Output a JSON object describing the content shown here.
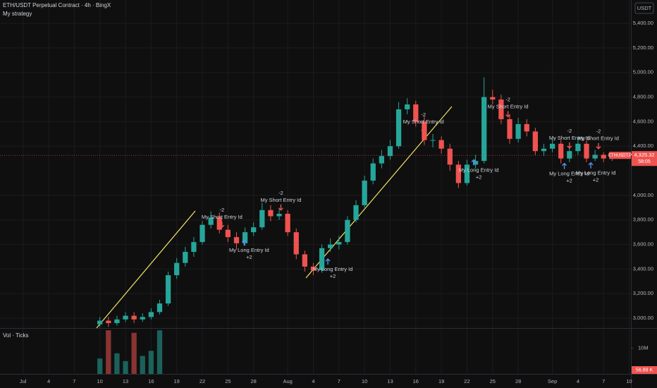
{
  "chart_data": {
    "type": "candlestick",
    "title": "ETH/USDT Perpetual Contract · 4h · BingX",
    "subtitle": "My strategy",
    "currency": "USDT",
    "volume_title": "Vol · Ticks",
    "symbol_tag": "ETHUSDT.P",
    "last_price": {
      "value": 4325.32,
      "label": "4,325.32"
    },
    "countdown": "58:05",
    "volume_tag": "56.89 K",
    "up_color": "#26a69a",
    "down_color": "#ef5350",
    "long_color": "#5b8def",
    "x": [
      9,
      10,
      11,
      12,
      13,
      14,
      15,
      16,
      17,
      18,
      19,
      20,
      21,
      22,
      23,
      24,
      25,
      26,
      27,
      28,
      29,
      30,
      31,
      32,
      33,
      34,
      35,
      36,
      37,
      38,
      39,
      40,
      41,
      42,
      43,
      44,
      45,
      46,
      47,
      48,
      49,
      50,
      51,
      52,
      53,
      54,
      55,
      56,
      57,
      58,
      59,
      60,
      61,
      62,
      63,
      64,
      65,
      66,
      67,
      68,
      69
    ],
    "open": [
      2950,
      2980,
      2960,
      2990,
      3020,
      2990,
      3010,
      3050,
      3120,
      3350,
      3450,
      3540,
      3620,
      3760,
      3820,
      3720,
      3660,
      3610,
      3700,
      3740,
      3880,
      3830,
      3850,
      3700,
      3520,
      3420,
      3390,
      3570,
      3600,
      3620,
      3800,
      3920,
      4120,
      4260,
      4320,
      4400,
      4700,
      4740,
      4600,
      4450,
      4450,
      4380,
      4250,
      4100,
      4250,
      4280,
      4800,
      4780,
      4620,
      4460,
      4580,
      4520,
      4360,
      4380,
      4420,
      4300,
      4360,
      4420,
      4300,
      4330,
      4300
    ],
    "high": [
      3010,
      3010,
      3020,
      3050,
      3050,
      3040,
      3080,
      3150,
      3380,
      3490,
      3580,
      3660,
      3790,
      3870,
      3860,
      3760,
      3700,
      3740,
      3780,
      3940,
      3920,
      3890,
      3880,
      3730,
      3550,
      3450,
      3600,
      3650,
      3670,
      3830,
      3960,
      4160,
      4300,
      4370,
      4450,
      4760,
      4790,
      4770,
      4640,
      4500,
      4480,
      4420,
      4280,
      4290,
      4330,
      4960,
      4860,
      4820,
      4660,
      4630,
      4620,
      4550,
      4420,
      4460,
      4450,
      4400,
      4470,
      4450,
      4370,
      4350,
      4350
    ],
    "low": [
      2930,
      2930,
      2940,
      2970,
      2960,
      2970,
      2990,
      3030,
      3100,
      3320,
      3420,
      3500,
      3600,
      3730,
      3690,
      3620,
      3560,
      3590,
      3670,
      3720,
      3790,
      3800,
      3670,
      3480,
      3380,
      3350,
      3370,
      3540,
      3560,
      3600,
      3780,
      3900,
      4090,
      4220,
      4290,
      4380,
      4660,
      4560,
      4410,
      4390,
      4340,
      4200,
      4060,
      4080,
      4220,
      4260,
      4740,
      4580,
      4420,
      4430,
      4480,
      4330,
      4320,
      4350,
      4260,
      4270,
      4330,
      4270,
      4280,
      4270,
      4280
    ],
    "close": [
      2980,
      2960,
      2990,
      3020,
      2990,
      3010,
      3050,
      3120,
      3350,
      3450,
      3540,
      3620,
      3760,
      3820,
      3720,
      3660,
      3610,
      3700,
      3740,
      3880,
      3830,
      3850,
      3700,
      3520,
      3420,
      3390,
      3570,
      3600,
      3620,
      3800,
      3920,
      4120,
      4260,
      4320,
      4400,
      4700,
      4740,
      4600,
      4450,
      4450,
      4380,
      4250,
      4100,
      4250,
      4280,
      4800,
      4780,
      4620,
      4460,
      4580,
      4520,
      4360,
      4380,
      4420,
      4300,
      4360,
      4420,
      4300,
      4330,
      4300,
      4325.32
    ],
    "volume": [
      6000000,
      17000000,
      8000000,
      5000000,
      16000000,
      7000000,
      9000000,
      17000000,
      null,
      null,
      null,
      null,
      null,
      null,
      null,
      null,
      null,
      null,
      null,
      null,
      null,
      null,
      null,
      null,
      null,
      null,
      null,
      null,
      null,
      null,
      null,
      null,
      null,
      null,
      null,
      null,
      null,
      null,
      null,
      null,
      null,
      null,
      null,
      null,
      null,
      null,
      null,
      null,
      null,
      null,
      null,
      null,
      null,
      null,
      null,
      null,
      null,
      null,
      null,
      null,
      null
    ],
    "xlim": [
      -2.7,
      71.2
    ],
    "xticks": [
      {
        "value": 0,
        "label": "Jul"
      },
      {
        "value": 3,
        "label": "4"
      },
      {
        "value": 6,
        "label": "7"
      },
      {
        "value": 9,
        "label": "10"
      },
      {
        "value": 12,
        "label": "13"
      },
      {
        "value": 15,
        "label": "16"
      },
      {
        "value": 18,
        "label": "19"
      },
      {
        "value": 21,
        "label": "22"
      },
      {
        "value": 24,
        "label": "25"
      },
      {
        "value": 27,
        "label": "28"
      },
      {
        "value": 31,
        "label": "Aug"
      },
      {
        "value": 34,
        "label": "4"
      },
      {
        "value": 37,
        "label": "7"
      },
      {
        "value": 40,
        "label": "10"
      },
      {
        "value": 43,
        "label": "13"
      },
      {
        "value": 46,
        "label": "16"
      },
      {
        "value": 49,
        "label": "19"
      },
      {
        "value": 52,
        "label": "22"
      },
      {
        "value": 55,
        "label": "25"
      },
      {
        "value": 58,
        "label": "28"
      },
      {
        "value": 62,
        "label": "Sep"
      },
      {
        "value": 65,
        "label": "4"
      },
      {
        "value": 68,
        "label": "7"
      },
      {
        "value": 71,
        "label": "10"
      }
    ],
    "ylim": [
      2920,
      5590
    ],
    "yticks": [
      {
        "value": 3000,
        "label": "3,000.00"
      },
      {
        "value": 3200,
        "label": "3,200.00"
      },
      {
        "value": 3400,
        "label": "3,400.00"
      },
      {
        "value": 3600,
        "label": "3,600.00"
      },
      {
        "value": 3800,
        "label": "3,800.00"
      },
      {
        "value": 4000,
        "label": "4,000.00"
      },
      {
        "value": 4400,
        "label": "4,400.00"
      },
      {
        "value": 4600,
        "label": "4,600.00"
      },
      {
        "value": 4800,
        "label": "4,800.00"
      },
      {
        "value": 5000,
        "label": "5,000.00"
      },
      {
        "value": 5200,
        "label": "5,200.00"
      },
      {
        "value": 5400,
        "label": "5,400.00"
      }
    ],
    "vol_ylim": [
      0,
      17600000
    ],
    "vol_yticks": [
      {
        "value": 10000000,
        "label": "10M"
      }
    ],
    "grid": true,
    "signals": [
      {
        "kind": "short",
        "label": "My Short Entry Id",
        "qty": "-2",
        "x": 23.3,
        "y": 3740
      },
      {
        "kind": "long",
        "label": "My Long Entry Id",
        "qty": "+2",
        "x": 25.9,
        "y": 3637
      },
      {
        "kind": "short",
        "label": "My Short Entry Id",
        "qty": "-2",
        "x": 30.2,
        "y": 3880
      },
      {
        "kind": "long",
        "label": "My Long Entry Id",
        "qty": "+2",
        "x": 35.7,
        "y": 3482
      },
      {
        "kind": "short",
        "label": "My Short Entry Id",
        "qty": "-2",
        "x": 46.9,
        "y": 4515
      },
      {
        "kind": "long",
        "label": "My Long Entry Id",
        "qty": "+2",
        "x": 52.8,
        "y": 4290
      },
      {
        "kind": "short",
        "label": "My Short Entry Id",
        "qty": "-2",
        "x": 56.8,
        "y": 4640
      },
      {
        "kind": "long",
        "label": "My Long Entry Id",
        "qty": "+2",
        "x": 63.4,
        "y": 4260
      },
      {
        "kind": "short",
        "label": "My Short Entry Id",
        "qty": "-2",
        "x": 64.0,
        "y": 4385
      },
      {
        "kind": "long",
        "label": "My Long Entry Id",
        "qty": "+2",
        "x": 66.5,
        "y": 4265
      },
      {
        "kind": "short",
        "label": "My Short Entry Id",
        "qty": "-2",
        "x": 67.4,
        "y": 4380
      }
    ]
  }
}
